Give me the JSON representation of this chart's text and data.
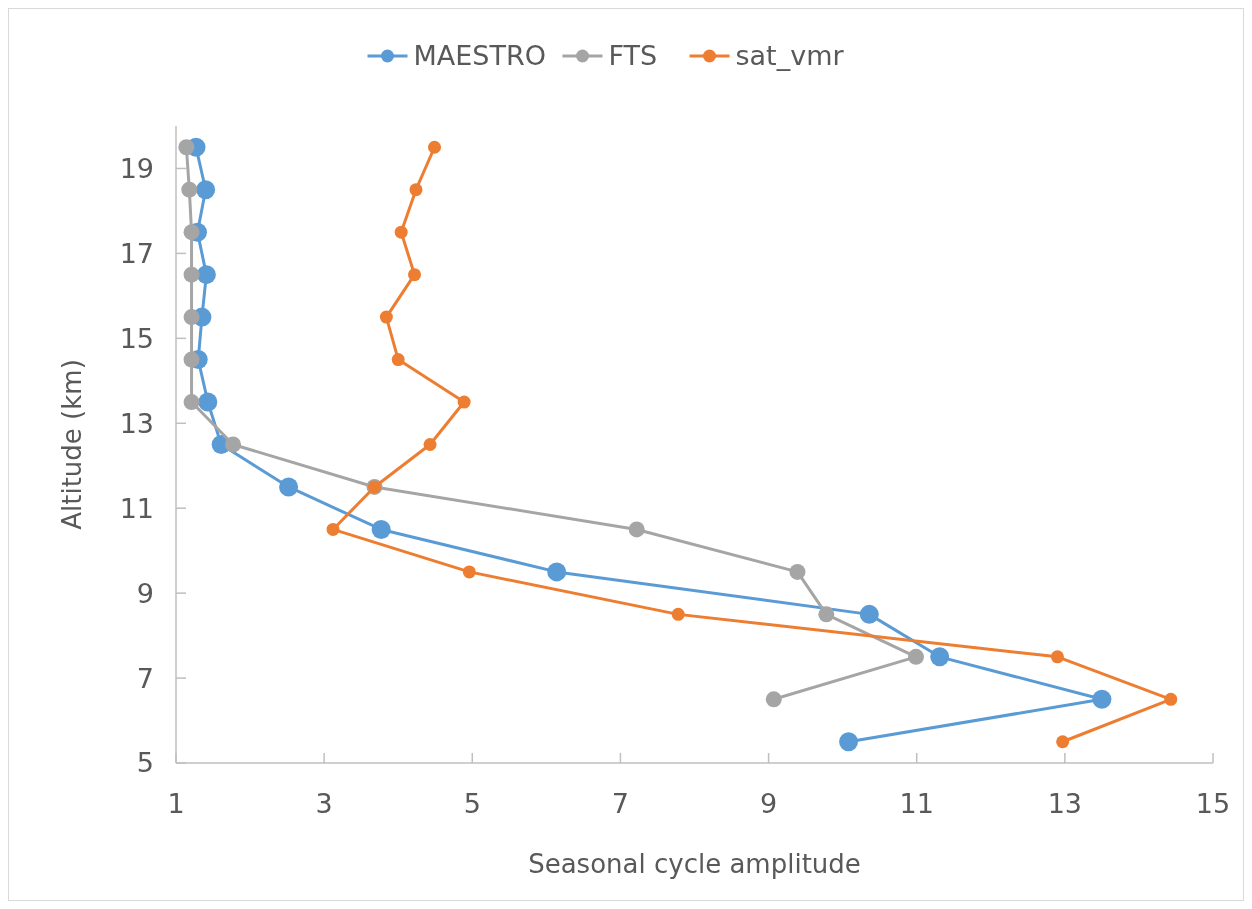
{
  "chart_data": {
    "type": "line",
    "xlabel": "Seasonal cycle amplitude",
    "ylabel": "Altitude (km)",
    "xlim": [
      1,
      15
    ],
    "xticks": [
      1,
      3,
      5,
      7,
      9,
      11,
      13,
      15
    ],
    "ylim": [
      5,
      20
    ],
    "yticks": [
      5,
      7,
      9,
      11,
      13,
      15,
      17,
      19
    ],
    "grid": false,
    "legend": "top",
    "marker": "circle",
    "line_style": "solid",
    "series": [
      {
        "name": "MAESTRO",
        "color": "#5b9bd5",
        "x": [
          1.27,
          1.4,
          1.29,
          1.41,
          1.35,
          1.3,
          1.43,
          1.61,
          2.52,
          3.77,
          6.14,
          10.36,
          11.31,
          13.5,
          10.08
        ],
        "values": [
          19.5,
          18.5,
          17.5,
          16.5,
          15.5,
          14.5,
          13.5,
          12.5,
          11.5,
          10.5,
          9.5,
          8.5,
          7.5,
          6.5,
          5.5
        ]
      },
      {
        "name": "FTS",
        "color": "#a5a5a5",
        "x": [
          1.14,
          1.18,
          1.21,
          1.21,
          1.21,
          1.21,
          1.21,
          1.77,
          3.68,
          7.22,
          9.39,
          9.78,
          10.99,
          9.07
        ],
        "values": [
          19.5,
          18.5,
          17.5,
          16.5,
          15.5,
          14.5,
          13.5,
          12.5,
          11.5,
          10.5,
          9.5,
          8.5,
          7.5,
          6.5
        ]
      },
      {
        "name": "sat_vmr",
        "color": "#ed7d31",
        "x": [
          4.49,
          4.24,
          4.04,
          4.22,
          3.84,
          4.0,
          4.89,
          4.43,
          3.68,
          3.12,
          4.96,
          7.78,
          12.9,
          14.43,
          12.97
        ],
        "values": [
          19.5,
          18.5,
          17.5,
          16.5,
          15.5,
          14.5,
          13.5,
          12.5,
          11.5,
          10.5,
          9.5,
          8.5,
          7.5,
          6.5,
          5.5
        ]
      }
    ]
  }
}
